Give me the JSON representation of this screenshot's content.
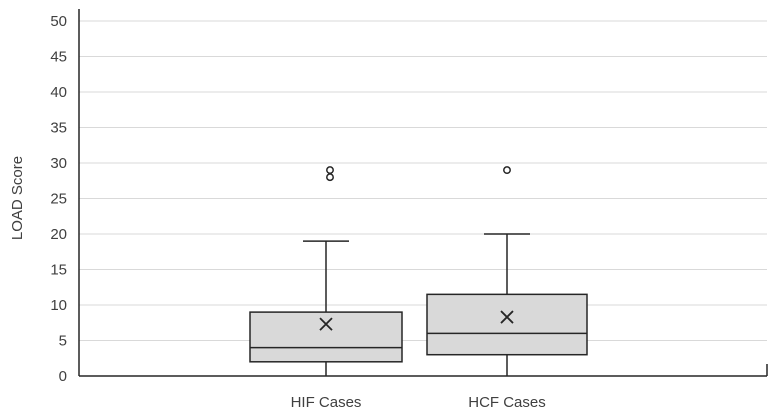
{
  "chart_data": {
    "type": "boxplot",
    "title": "",
    "xlabel": "",
    "ylabel": "LOAD Score",
    "ylim": [
      0,
      50
    ],
    "yticks": [
      0,
      5,
      10,
      15,
      20,
      25,
      30,
      35,
      40,
      45,
      50
    ],
    "grid": true,
    "legend": "none",
    "categories": [
      "HIF Cases",
      "HCF Cases"
    ],
    "boxes": [
      {
        "category": "HIF Cases",
        "min": 0,
        "q1": 2,
        "median": 4,
        "q3": 9,
        "max": 19,
        "mean": 7.3,
        "outliers": [
          28,
          29
        ]
      },
      {
        "category": "HCF Cases",
        "min": 0,
        "q1": 3,
        "median": 6,
        "q3": 11.5,
        "max": 20,
        "mean": 8.3,
        "outliers": [
          29
        ]
      }
    ],
    "colors": {
      "box_fill": "#d9d9d9",
      "box_stroke": "#262626",
      "grid": "#d9d9d9",
      "axis": "#262626"
    }
  }
}
